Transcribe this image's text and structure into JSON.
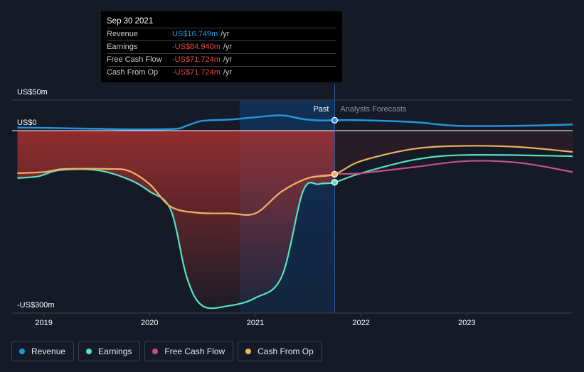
{
  "chart_data": {
    "type": "line",
    "title": "",
    "y_axis": {
      "top_label": "US$50m",
      "zero_label": "US$0",
      "bottom_label": "-US$300m",
      "ylim": [
        -300,
        50
      ]
    },
    "x_axis": {
      "ticks": [
        "2019",
        "2020",
        "2021",
        "2022",
        "2023"
      ],
      "xlim": [
        2018.7,
        2024.0
      ]
    },
    "divider": {
      "x": 2021.75,
      "past_label": "Past",
      "forecast_label": "Analysts Forecasts"
    },
    "series": [
      {
        "name": "Revenue",
        "color": "#2394df",
        "x": [
          2018.75,
          2019.0,
          2019.5,
          2019.9,
          2020.25,
          2020.35,
          2020.5,
          2020.75,
          2021.0,
          2021.25,
          2021.45,
          2021.6,
          2021.75,
          2022.0,
          2022.5,
          2022.9,
          2023.5,
          2024.0
        ],
        "values": [
          5,
          4.5,
          3,
          2,
          3,
          8,
          16,
          18,
          22,
          25,
          19,
          16.7,
          17,
          17,
          14,
          8,
          8,
          10
        ]
      },
      {
        "name": "Earnings",
        "color": "#58e1c1",
        "x": [
          2018.75,
          2018.95,
          2019.15,
          2019.5,
          2019.8,
          2020.0,
          2020.2,
          2020.35,
          2020.5,
          2020.75,
          2021.0,
          2021.25,
          2021.45,
          2021.6,
          2021.75,
          2022.0,
          2022.5,
          2023.0,
          2024.0
        ],
        "values": [
          -78,
          -75,
          -65,
          -65,
          -80,
          -100,
          -130,
          -240,
          -288,
          -288,
          -275,
          -240,
          -100,
          -88,
          -85,
          -70,
          -48,
          -40,
          -42
        ]
      },
      {
        "name": "Free Cash Flow",
        "color": "#c44f89",
        "x": [
          2018.75,
          2019.0,
          2019.2,
          2019.6,
          2019.8,
          2020.0,
          2020.2,
          2020.45,
          2020.75,
          2021.0,
          2021.25,
          2021.5,
          2021.75,
          2022.0,
          2022.5,
          2023.0,
          2023.5,
          2024.0
        ],
        "values": [
          -70,
          -68,
          -63,
          -63,
          -66,
          -88,
          -125,
          -135,
          -136,
          -136,
          -100,
          -78,
          -71.7,
          -70,
          -60,
          -50,
          -53,
          -68
        ]
      },
      {
        "name": "Cash From Op",
        "color": "#f0b15e",
        "x": [
          2018.75,
          2019.0,
          2019.2,
          2019.6,
          2019.8,
          2020.0,
          2020.2,
          2020.45,
          2020.75,
          2021.0,
          2021.25,
          2021.5,
          2021.75,
          2022.0,
          2022.5,
          2023.0,
          2023.5,
          2024.0
        ],
        "values": [
          -70,
          -68,
          -63,
          -63,
          -66,
          -88,
          -125,
          -135,
          -136,
          -136,
          -100,
          -78,
          -71.7,
          -50,
          -30,
          -25,
          -27,
          -35
        ]
      }
    ],
    "highlight": {
      "x": 2021.75
    }
  },
  "tooltip": {
    "date": "Sep 30 2021",
    "rows": [
      {
        "label": "Revenue",
        "value": "US$16.749m",
        "unit": "/yr",
        "color": "#2394df"
      },
      {
        "label": "Earnings",
        "value": "-US$84.940m",
        "unit": "/yr",
        "color": "#e8454a"
      },
      {
        "label": "Free Cash Flow",
        "value": "-US$71.724m",
        "unit": "/yr",
        "color": "#e8454a"
      },
      {
        "label": "Cash From Op",
        "value": "-US$71.724m",
        "unit": "/yr",
        "color": "#e8454a"
      }
    ]
  },
  "legend": [
    {
      "label": "Revenue",
      "color": "#2394df"
    },
    {
      "label": "Earnings",
      "color": "#58e1c1"
    },
    {
      "label": "Free Cash Flow",
      "color": "#c44f89"
    },
    {
      "label": "Cash From Op",
      "color": "#f0b15e"
    }
  ]
}
